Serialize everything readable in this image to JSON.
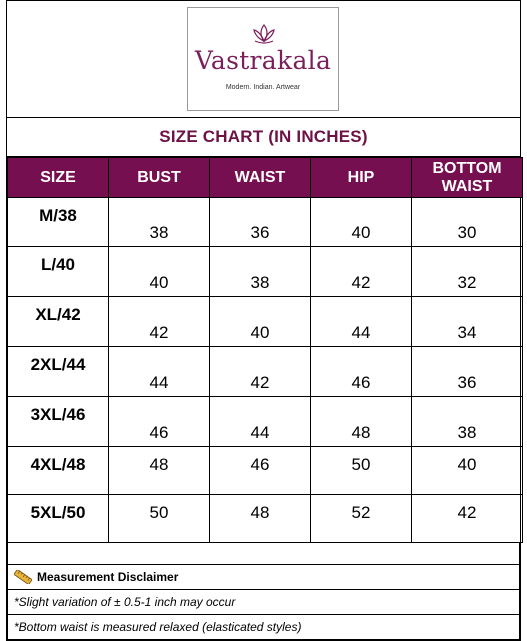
{
  "brand": {
    "name": "Vastrakala",
    "tagline": "Modern. Indian. Artwear",
    "colors": {
      "primary": "#760f4f",
      "title": "#6d1246"
    }
  },
  "title": "SIZE CHART  (IN INCHES)",
  "table": {
    "headers": [
      "SIZE",
      "BUST",
      "WAIST",
      "HIP",
      "BOTTOM WAIST"
    ],
    "rows": [
      [
        "M/38",
        "38",
        "36",
        "40",
        "30"
      ],
      [
        "L/40",
        "40",
        "38",
        "42",
        "32"
      ],
      [
        "XL/42",
        "42",
        "40",
        "44",
        "34"
      ],
      [
        "2XL/44",
        "44",
        "42",
        "46",
        "36"
      ],
      [
        "3XL/46",
        "46",
        "44",
        "48",
        "38"
      ],
      [
        "4XL/48",
        "48",
        "46",
        "50",
        "40"
      ],
      [
        "5XL/50",
        "50",
        "48",
        "52",
        "42"
      ]
    ]
  },
  "disclaimer": {
    "icon": "ruler-icon",
    "heading": "Measurement Disclaimer",
    "notes": [
      "*Slight variation of ± 0.5-1 inch may occur",
      "*Bottom waist is measured relaxed (elasticated styles)"
    ]
  }
}
